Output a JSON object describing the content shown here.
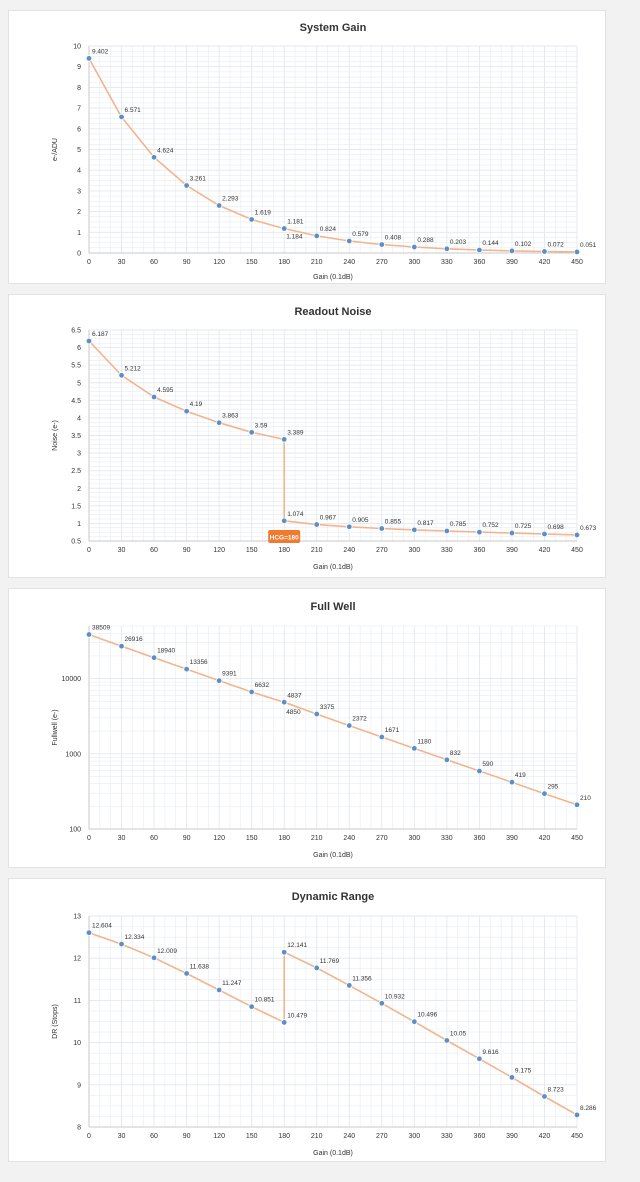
{
  "charts": [
    {
      "title": "System Gain",
      "xlabel": "Gain (0.1dB)",
      "ylabel": "e-/ADU",
      "scale": "linear",
      "ylim": [
        0,
        10
      ],
      "yticks": [
        "0",
        "1",
        "2",
        "3",
        "4",
        "5",
        "6",
        "7",
        "8",
        "9",
        "10"
      ],
      "xticks": [
        "0",
        "30",
        "60",
        "90",
        "120",
        "150",
        "180",
        "210",
        "240",
        "270",
        "300",
        "330",
        "360",
        "390",
        "420",
        "450"
      ]
    },
    {
      "title": "Readout Noise",
      "xlabel": "Gain (0.1dB)",
      "ylabel": "Noise (e-)",
      "scale": "linear",
      "ylim": [
        0.5,
        6.5
      ],
      "yticks": [
        "0.5",
        "1",
        "1.5",
        "2",
        "2.5",
        "3",
        "3.5",
        "4",
        "4.5",
        "5",
        "5.5",
        "6",
        "6.5"
      ],
      "xticks": [
        "0",
        "30",
        "60",
        "90",
        "120",
        "150",
        "180",
        "210",
        "240",
        "270",
        "300",
        "330",
        "360",
        "390",
        "420",
        "450"
      ],
      "badge": "HCG=180"
    },
    {
      "title": "Full Well",
      "xlabel": "Gain (0.1dB)",
      "ylabel": "Fullwell (e-)",
      "scale": "log",
      "ylim": [
        100,
        50000
      ],
      "yticks": [
        "100",
        "1000",
        "10000"
      ],
      "xticks": [
        "0",
        "30",
        "60",
        "90",
        "120",
        "150",
        "180",
        "210",
        "240",
        "270",
        "300",
        "330",
        "360",
        "390",
        "420",
        "450"
      ]
    },
    {
      "title": "Dynamic Range",
      "xlabel": "Gain (0.1dB)",
      "ylabel": "DR (Stops)",
      "scale": "linear",
      "ylim": [
        8,
        13
      ],
      "yticks": [
        "8",
        "9",
        "10",
        "11",
        "12",
        "13"
      ],
      "xticks": [
        "0",
        "30",
        "60",
        "90",
        "120",
        "150",
        "180",
        "210",
        "240",
        "270",
        "300",
        "330",
        "360",
        "390",
        "420",
        "450"
      ]
    }
  ],
  "chart_data": [
    {
      "type": "line",
      "title": "System Gain",
      "xlabel": "Gain (0.1dB)",
      "ylabel": "e-/ADU",
      "ylim": [
        0,
        10
      ],
      "grid": true,
      "points": [
        {
          "x": 0,
          "y": 9.402,
          "label": "9.402"
        },
        {
          "x": 30,
          "y": 6.571,
          "label": "6.571"
        },
        {
          "x": 60,
          "y": 4.624,
          "label": "4.624"
        },
        {
          "x": 90,
          "y": 3.261,
          "label": "3.261"
        },
        {
          "x": 120,
          "y": 2.293,
          "label": "2.293"
        },
        {
          "x": 150,
          "y": 1.619,
          "label": "1.619"
        },
        {
          "x": 180,
          "y": 1.181,
          "label": "1.181"
        },
        {
          "x": 180,
          "y": 1.184,
          "label": "1.184"
        },
        {
          "x": 210,
          "y": 0.824,
          "label": "0.824"
        },
        {
          "x": 240,
          "y": 0.579,
          "label": "0.579"
        },
        {
          "x": 270,
          "y": 0.408,
          "label": "0.408"
        },
        {
          "x": 300,
          "y": 0.288,
          "label": "0.288"
        },
        {
          "x": 330,
          "y": 0.203,
          "label": "0.203"
        },
        {
          "x": 360,
          "y": 0.144,
          "label": "0.144"
        },
        {
          "x": 390,
          "y": 0.102,
          "label": "0.102"
        },
        {
          "x": 420,
          "y": 0.072,
          "label": "0.072"
        },
        {
          "x": 450,
          "y": 0.051,
          "label": "0.051"
        }
      ]
    },
    {
      "type": "line",
      "title": "Readout Noise",
      "xlabel": "Gain (0.1dB)",
      "ylabel": "Noise (e-)",
      "ylim": [
        0.5,
        6.5
      ],
      "grid": true,
      "points": [
        {
          "x": 0,
          "y": 6.187,
          "label": "6.187"
        },
        {
          "x": 30,
          "y": 5.212,
          "label": "5.212"
        },
        {
          "x": 60,
          "y": 4.595,
          "label": "4.595"
        },
        {
          "x": 90,
          "y": 4.19,
          "label": "4.19"
        },
        {
          "x": 120,
          "y": 3.863,
          "label": "3.863"
        },
        {
          "x": 150,
          "y": 3.59,
          "label": "3.59"
        },
        {
          "x": 180,
          "y": 3.389,
          "label": "3.389"
        },
        {
          "x": 180,
          "y": 1.074,
          "label": "1.074"
        },
        {
          "x": 210,
          "y": 0.967,
          "label": "0.967"
        },
        {
          "x": 240,
          "y": 0.905,
          "label": "0.905"
        },
        {
          "x": 270,
          "y": 0.855,
          "label": "0.855"
        },
        {
          "x": 300,
          "y": 0.817,
          "label": "0.817"
        },
        {
          "x": 330,
          "y": 0.785,
          "label": "0.785"
        },
        {
          "x": 360,
          "y": 0.752,
          "label": "0.752"
        },
        {
          "x": 390,
          "y": 0.725,
          "label": "0.725"
        },
        {
          "x": 420,
          "y": 0.698,
          "label": "0.698"
        },
        {
          "x": 450,
          "y": 0.673,
          "label": "0.673"
        }
      ],
      "annotation": "HCG=180"
    },
    {
      "type": "line",
      "title": "Full Well",
      "xlabel": "Gain (0.1dB)",
      "ylabel": "Fullwell (e-)",
      "yscale": "log",
      "ylim": [
        100,
        50000
      ],
      "grid": true,
      "points": [
        {
          "x": 0,
          "y": 38509,
          "label": "38509"
        },
        {
          "x": 30,
          "y": 26916,
          "label": "26916"
        },
        {
          "x": 60,
          "y": 18940,
          "label": "18940"
        },
        {
          "x": 90,
          "y": 13356,
          "label": "13356"
        },
        {
          "x": 120,
          "y": 9391,
          "label": "9391"
        },
        {
          "x": 150,
          "y": 6632,
          "label": "6632"
        },
        {
          "x": 180,
          "y": 4837,
          "label": "4837"
        },
        {
          "x": 180,
          "y": 4850,
          "label": "4850"
        },
        {
          "x": 210,
          "y": 3375,
          "label": "3375"
        },
        {
          "x": 240,
          "y": 2372,
          "label": "2372"
        },
        {
          "x": 270,
          "y": 1671,
          "label": "1671"
        },
        {
          "x": 300,
          "y": 1180,
          "label": "1180"
        },
        {
          "x": 330,
          "y": 832,
          "label": "832"
        },
        {
          "x": 360,
          "y": 590,
          "label": "590"
        },
        {
          "x": 390,
          "y": 419,
          "label": "419"
        },
        {
          "x": 420,
          "y": 295,
          "label": "295"
        },
        {
          "x": 450,
          "y": 210,
          "label": "210"
        }
      ]
    },
    {
      "type": "line",
      "title": "Dynamic Range",
      "xlabel": "Gain (0.1dB)",
      "ylabel": "DR (Stops)",
      "ylim": [
        8,
        13
      ],
      "grid": true,
      "points": [
        {
          "x": 0,
          "y": 12.604,
          "label": "12.604"
        },
        {
          "x": 30,
          "y": 12.334,
          "label": "12.334"
        },
        {
          "x": 60,
          "y": 12.009,
          "label": "12.009"
        },
        {
          "x": 90,
          "y": 11.638,
          "label": "11.638"
        },
        {
          "x": 120,
          "y": 11.247,
          "label": "11.247"
        },
        {
          "x": 150,
          "y": 10.851,
          "label": "10.851"
        },
        {
          "x": 180,
          "y": 10.479,
          "label": "10.479"
        },
        {
          "x": 180,
          "y": 12.141,
          "label": "12.141"
        },
        {
          "x": 210,
          "y": 11.769,
          "label": "11.769"
        },
        {
          "x": 240,
          "y": 11.356,
          "label": "11.356"
        },
        {
          "x": 270,
          "y": 10.932,
          "label": "10.932"
        },
        {
          "x": 300,
          "y": 10.496,
          "label": "10.496"
        },
        {
          "x": 330,
          "y": 10.05,
          "label": "10.05"
        },
        {
          "x": 360,
          "y": 9.616,
          "label": "9.616"
        },
        {
          "x": 390,
          "y": 9.175,
          "label": "9.175"
        },
        {
          "x": 420,
          "y": 8.723,
          "label": "8.723"
        },
        {
          "x": 450,
          "y": 8.286,
          "label": "8.286"
        }
      ]
    }
  ],
  "colors": {
    "line": "#f2b48e",
    "marker": "#5b8fc7",
    "badge": "#f07a2e",
    "grid": "#e3e8ef",
    "text": "#333333"
  }
}
